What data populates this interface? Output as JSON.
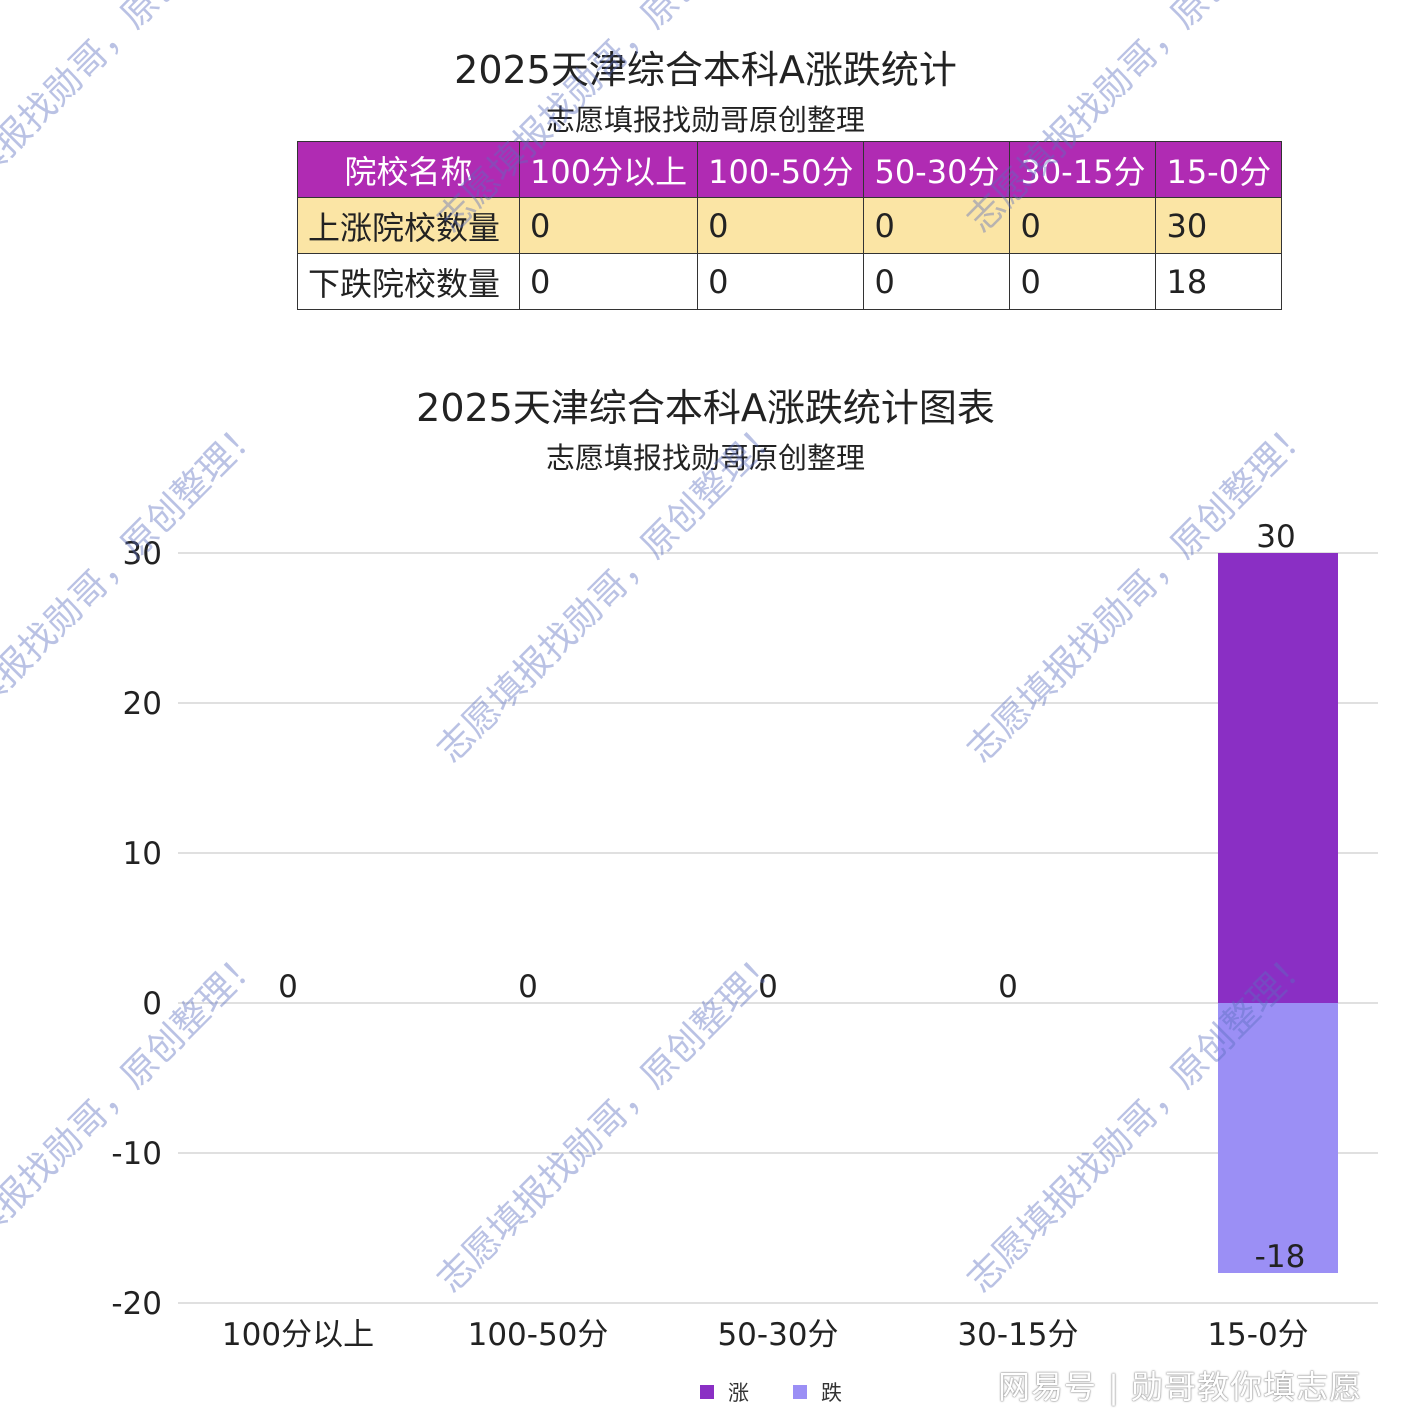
{
  "table": {
    "title": "2025天津综合本科A涨跌统计",
    "subtitle": "志愿填报找勋哥原创整理",
    "header": [
      "院校名称",
      "100分以上",
      "100-50分",
      "50-30分",
      "30-15分",
      "15-0分"
    ],
    "rows": [
      {
        "label": "上涨院校数量",
        "values": [
          "0",
          "0",
          "0",
          "0",
          "30"
        ]
      },
      {
        "label": "下跌院校数量",
        "values": [
          "0",
          "0",
          "0",
          "0",
          "18"
        ]
      }
    ],
    "colors": {
      "header_bg": "#b02bb3",
      "row_up_bg": "#fbe5a5"
    }
  },
  "chart_data": {
    "type": "bar",
    "title": "2025天津综合本科A涨跌统计图表",
    "subtitle": "志愿填报找勋哥原创整理",
    "categories": [
      "100分以上",
      "100-50分",
      "50-30分",
      "30-15分",
      "15-0分"
    ],
    "series": [
      {
        "name": "涨",
        "values": [
          0,
          0,
          0,
          0,
          30
        ],
        "color": "#8a2fc4"
      },
      {
        "name": "跌",
        "values": [
          0,
          0,
          0,
          0,
          -18
        ],
        "color": "#9b8ff5"
      }
    ],
    "stacked": true,
    "ylim": [
      -20,
      30
    ],
    "yticks": [
      30,
      20,
      10,
      0,
      -10,
      -20
    ],
    "data_labels": [
      {
        "category": "100分以上",
        "text": "0"
      },
      {
        "category": "100-50分",
        "text": "0"
      },
      {
        "category": "50-30分",
        "text": "0"
      },
      {
        "category": "30-15分",
        "text": "0"
      },
      {
        "category": "15-0分",
        "text": "30"
      },
      {
        "category": "15-0分",
        "text": "-18"
      }
    ],
    "grid": true,
    "legend": "bottom"
  },
  "watermark": {
    "text": "志愿填报找勋哥，原创整理！"
  },
  "footer": {
    "brand": "网易号 | 勋哥教你填志愿"
  }
}
